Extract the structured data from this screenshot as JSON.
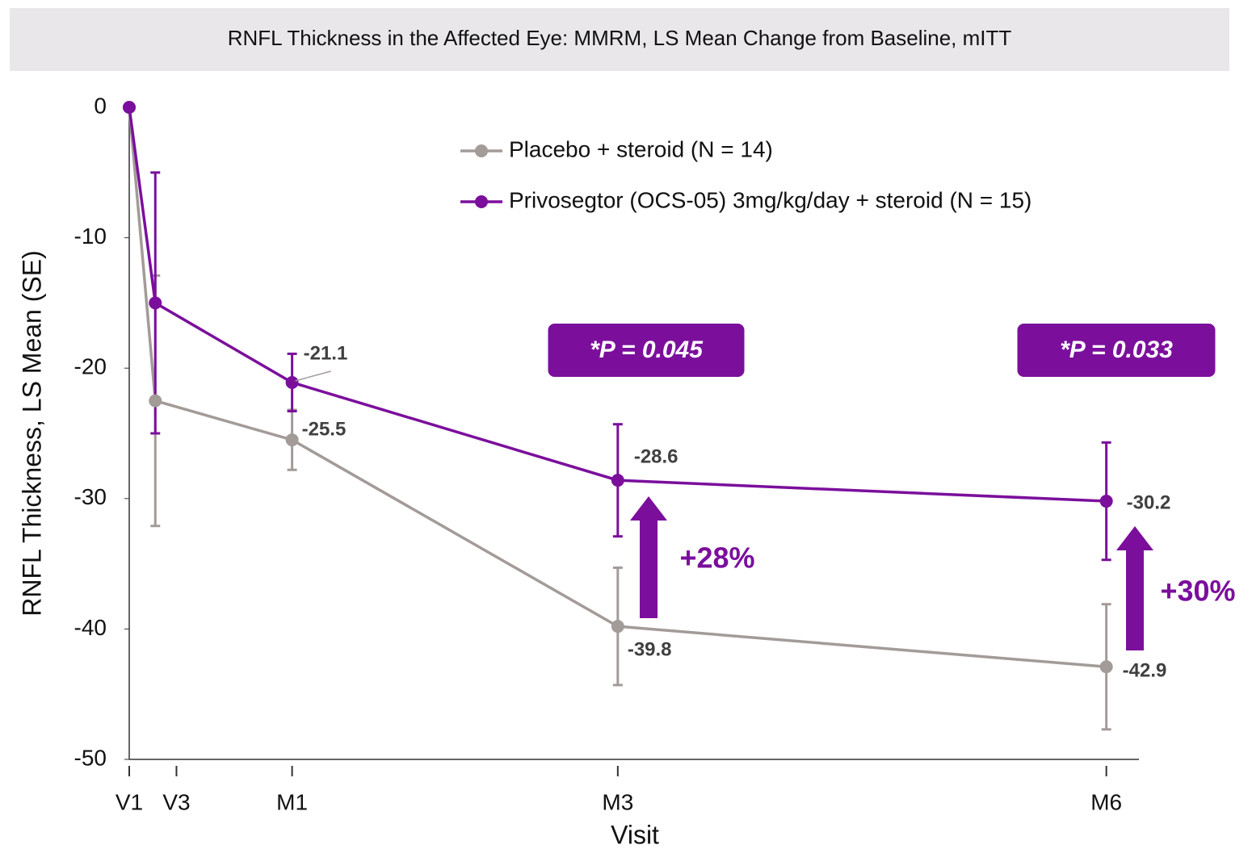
{
  "chart_data": {
    "type": "line",
    "title": "RNFL Thickness in the Affected Eye: MMRM, LS Mean Change from Baseline, mITT",
    "x_label": "Visit",
    "y_label": "RNFL Thickness, LS Mean (SE)",
    "x": [
      0,
      0.16,
      1,
      3,
      6
    ],
    "xlim": [
      0,
      6.2
    ],
    "xticks": [
      {
        "value": 0,
        "label": "V1"
      },
      {
        "value": 0.29,
        "label": "V3"
      },
      {
        "value": 1,
        "label": "M1"
      },
      {
        "value": 3,
        "label": "M3"
      },
      {
        "value": 6,
        "label": "M6"
      }
    ],
    "ylim": [
      -50,
      0
    ],
    "yticks": [
      0,
      -10,
      -20,
      -30,
      -40,
      -50
    ],
    "legend": "top-right",
    "series": [
      {
        "name": "Placebo + steroid (N = 14)",
        "color": "#a39b98",
        "values": [
          0,
          -22.5,
          -25.5,
          -39.8,
          -42.9
        ],
        "errors": [
          0,
          9.6,
          2.3,
          4.5,
          4.8
        ]
      },
      {
        "name": "Privosegtor (OCS-05) 3mg/kg/day + steroid (N = 15)",
        "color": "#7b0f9c",
        "values": [
          0,
          -15,
          -21.1,
          -28.6,
          -30.2
        ],
        "errors": [
          0,
          10,
          2.2,
          4.3,
          4.5
        ]
      }
    ],
    "annotations": [
      "*P = 0.045",
      "*P = 0.033",
      "+28%",
      "+30%"
    ]
  }
}
